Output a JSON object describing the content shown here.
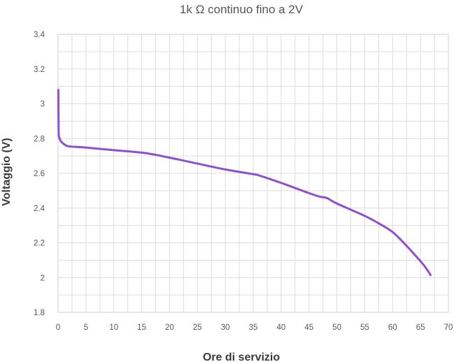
{
  "chart_data": {
    "type": "line",
    "title": "1k Ω continuo fino a 2V",
    "xlabel": "Ore di servizio",
    "ylabel": "Voltaggio (V)",
    "xlim": [
      0,
      70
    ],
    "ylim": [
      1.8,
      3.4
    ],
    "xticks": [
      "0",
      "5",
      "10",
      "15",
      "20",
      "25",
      "30",
      "35",
      "40",
      "45",
      "50",
      "55",
      "60",
      "65",
      "70"
    ],
    "yticks": [
      "1.8",
      "2",
      "2.2",
      "2.4",
      "2.6",
      "2.8",
      "3",
      "3.2",
      "3.4"
    ],
    "grid": true,
    "legend": "none",
    "colors": {
      "series": "#8e4fd0",
      "grid": "#dcdcdc"
    },
    "series": [
      {
        "x": [
          0.05,
          0.1,
          0.2,
          0.4,
          0.8,
          1.2,
          2,
          5,
          10,
          15.5,
          20,
          25,
          30,
          35,
          36,
          40,
          45,
          47,
          48.2,
          50,
          55,
          58,
          60,
          62,
          64,
          65.5,
          66.3,
          66.8
        ],
        "y": [
          3.08,
          2.84,
          2.81,
          2.79,
          2.775,
          2.765,
          2.755,
          2.748,
          2.733,
          2.717,
          2.69,
          2.656,
          2.622,
          2.595,
          2.588,
          2.545,
          2.486,
          2.465,
          2.458,
          2.426,
          2.355,
          2.303,
          2.262,
          2.2,
          2.13,
          2.075,
          2.04,
          2.015
        ]
      }
    ]
  }
}
